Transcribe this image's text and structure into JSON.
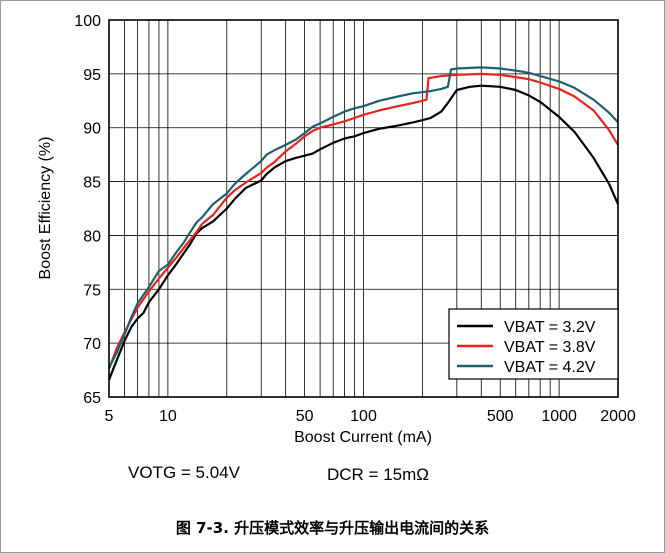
{
  "chart_data": {
    "type": "line",
    "xlabel": "Boost Current (mA)",
    "ylabel": "Boost Efficiency (%)",
    "x_scale": "log",
    "xlim": [
      5,
      2000
    ],
    "ylim": [
      65,
      100
    ],
    "x_ticks": [
      5,
      10,
      50,
      100,
      500,
      1000,
      2000
    ],
    "y_ticks": [
      65,
      70,
      75,
      80,
      85,
      90,
      95,
      100
    ],
    "grid": true,
    "legend_position": "bottom-right",
    "series": [
      {
        "name": "VBAT = 3.2V",
        "color": "#000000",
        "points": [
          [
            5,
            66.6
          ],
          [
            5.5,
            68.5
          ],
          [
            6,
            70.2
          ],
          [
            6.5,
            71.5
          ],
          [
            7,
            72.3
          ],
          [
            7.5,
            72.8
          ],
          [
            8,
            73.8
          ],
          [
            9,
            75.0
          ],
          [
            10,
            76.3
          ],
          [
            11,
            77.3
          ],
          [
            12,
            78.3
          ],
          [
            13,
            79.2
          ],
          [
            14,
            80.2
          ],
          [
            15,
            80.7
          ],
          [
            17,
            81.3
          ],
          [
            20,
            82.5
          ],
          [
            22,
            83.4
          ],
          [
            25,
            84.4
          ],
          [
            30,
            85.1
          ],
          [
            32,
            85.7
          ],
          [
            35,
            86.3
          ],
          [
            40,
            86.9
          ],
          [
            45,
            87.2
          ],
          [
            50,
            87.4
          ],
          [
            55,
            87.6
          ],
          [
            60,
            88.0
          ],
          [
            70,
            88.6
          ],
          [
            80,
            89.0
          ],
          [
            90,
            89.2
          ],
          [
            100,
            89.5
          ],
          [
            120,
            89.9
          ],
          [
            150,
            90.2
          ],
          [
            180,
            90.5
          ],
          [
            200,
            90.7
          ],
          [
            220,
            90.9
          ],
          [
            250,
            91.5
          ],
          [
            270,
            92.3
          ],
          [
            300,
            93.5
          ],
          [
            350,
            93.8
          ],
          [
            400,
            93.9
          ],
          [
            500,
            93.8
          ],
          [
            600,
            93.5
          ],
          [
            700,
            93.0
          ],
          [
            800,
            92.4
          ],
          [
            1000,
            91.0
          ],
          [
            1200,
            89.6
          ],
          [
            1500,
            87.2
          ],
          [
            1800,
            84.8
          ],
          [
            2000,
            82.9
          ]
        ]
      },
      {
        "name": "VBAT = 3.8V",
        "color": "#e8231c",
        "points": [
          [
            5,
            67.6
          ],
          [
            5.5,
            69.6
          ],
          [
            6,
            71.0
          ],
          [
            6.5,
            72.2
          ],
          [
            7,
            73.3
          ],
          [
            8,
            74.8
          ],
          [
            9,
            76.0
          ],
          [
            10,
            77.0
          ],
          [
            11,
            77.9
          ],
          [
            12,
            78.8
          ],
          [
            13,
            79.6
          ],
          [
            14,
            80.3
          ],
          [
            15,
            81.1
          ],
          [
            17,
            81.9
          ],
          [
            20,
            83.5
          ],
          [
            22,
            84.2
          ],
          [
            25,
            84.9
          ],
          [
            30,
            85.8
          ],
          [
            32,
            86.3
          ],
          [
            35,
            86.8
          ],
          [
            40,
            87.8
          ],
          [
            45,
            88.5
          ],
          [
            50,
            89.2
          ],
          [
            55,
            89.7
          ],
          [
            60,
            90.0
          ],
          [
            70,
            90.3
          ],
          [
            80,
            90.6
          ],
          [
            90,
            90.9
          ],
          [
            100,
            91.2
          ],
          [
            120,
            91.6
          ],
          [
            150,
            92.0
          ],
          [
            180,
            92.3
          ],
          [
            200,
            92.5
          ],
          [
            210,
            92.6
          ],
          [
            215,
            94.6
          ],
          [
            250,
            94.8
          ],
          [
            300,
            94.9
          ],
          [
            400,
            95.0
          ],
          [
            500,
            94.9
          ],
          [
            600,
            94.7
          ],
          [
            700,
            94.5
          ],
          [
            800,
            94.2
          ],
          [
            1000,
            93.6
          ],
          [
            1200,
            92.9
          ],
          [
            1500,
            91.6
          ],
          [
            1800,
            89.8
          ],
          [
            2000,
            88.4
          ]
        ]
      },
      {
        "name": "VBAT = 4.2V",
        "color": "#1f5f6e",
        "points": [
          [
            5,
            67.7
          ],
          [
            5.5,
            69.2
          ],
          [
            6,
            70.8
          ],
          [
            6.5,
            72.4
          ],
          [
            7,
            73.7
          ],
          [
            8,
            75.2
          ],
          [
            9,
            76.7
          ],
          [
            10,
            77.3
          ],
          [
            11,
            78.4
          ],
          [
            12,
            79.3
          ],
          [
            13,
            80.3
          ],
          [
            14,
            81.2
          ],
          [
            15,
            81.7
          ],
          [
            17,
            82.9
          ],
          [
            20,
            83.9
          ],
          [
            22,
            84.8
          ],
          [
            25,
            85.7
          ],
          [
            30,
            86.9
          ],
          [
            32,
            87.5
          ],
          [
            35,
            87.9
          ],
          [
            40,
            88.4
          ],
          [
            45,
            88.9
          ],
          [
            50,
            89.5
          ],
          [
            55,
            90.1
          ],
          [
            60,
            90.4
          ],
          [
            70,
            91.0
          ],
          [
            80,
            91.5
          ],
          [
            90,
            91.8
          ],
          [
            100,
            92.0
          ],
          [
            120,
            92.5
          ],
          [
            150,
            92.9
          ],
          [
            180,
            93.2
          ],
          [
            200,
            93.3
          ],
          [
            220,
            93.4
          ],
          [
            250,
            93.6
          ],
          [
            270,
            93.8
          ],
          [
            280,
            95.4
          ],
          [
            300,
            95.5
          ],
          [
            400,
            95.6
          ],
          [
            500,
            95.5
          ],
          [
            600,
            95.3
          ],
          [
            700,
            95.1
          ],
          [
            800,
            94.8
          ],
          [
            1000,
            94.3
          ],
          [
            1200,
            93.7
          ],
          [
            1500,
            92.6
          ],
          [
            1800,
            91.4
          ],
          [
            2000,
            90.5
          ]
        ]
      }
    ]
  },
  "conditions": {
    "votg": "VOTG = 5.04V",
    "dcr": "DCR = 15mΩ"
  },
  "caption": "图 7-3. 升压模式效率与升压输出电流间的关系"
}
